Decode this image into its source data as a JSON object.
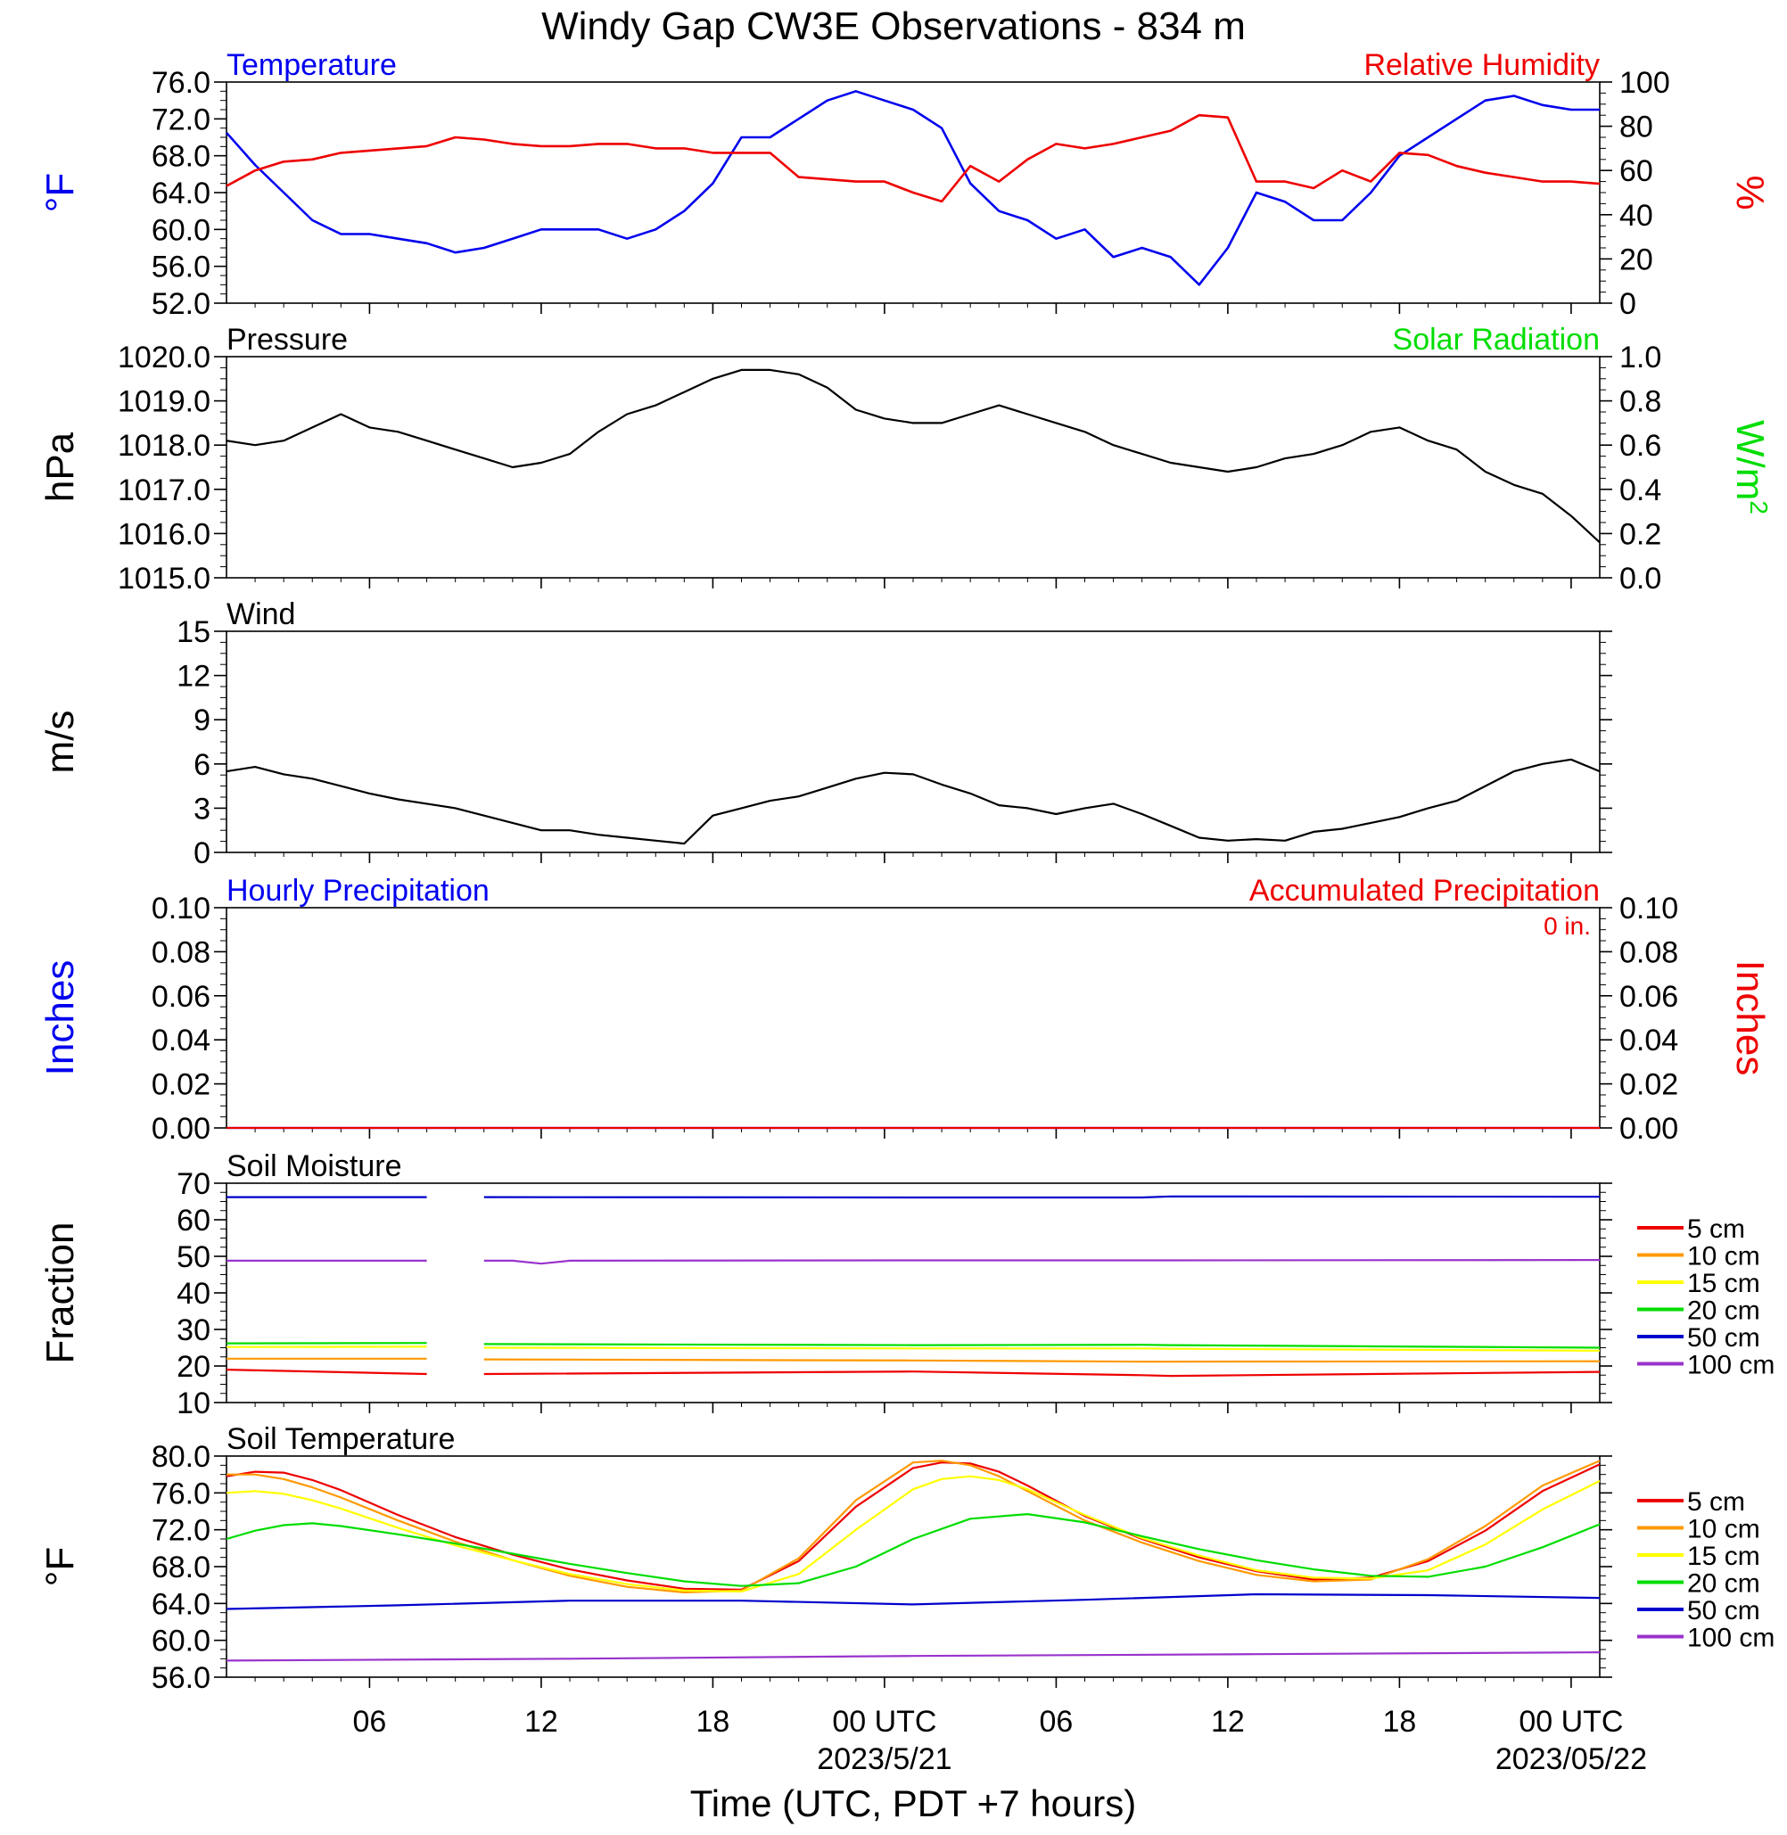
{
  "title": "Windy Gap CW3E Observations - 834 m",
  "xlabel": "Time (UTC, PDT +7 hours)",
  "colors": {
    "blue": "#0000ee",
    "red": "#ee0000",
    "green": "#00dd00",
    "black": "#000000",
    "orange": "#ff9900",
    "yellow": "#ffff00",
    "darkblue": "#0000cc",
    "purple": "#9933cc"
  },
  "time_axis": {
    "range_hours": [
      0,
      48
    ],
    "ticks": [
      {
        "hour": 5,
        "label": "06",
        "date": ""
      },
      {
        "hour": 11,
        "label": "12",
        "date": ""
      },
      {
        "hour": 17,
        "label": "18",
        "date": ""
      },
      {
        "hour": 23,
        "label": "00 UTC",
        "date": "2023/5/21"
      },
      {
        "hour": 29,
        "label": "06",
        "date": ""
      },
      {
        "hour": 35,
        "label": "12",
        "date": ""
      },
      {
        "hour": 41,
        "label": "18",
        "date": ""
      },
      {
        "hour": 47,
        "label": "00 UTC",
        "date": "2023/05/22"
      }
    ]
  },
  "chart_data": [
    {
      "type": "line",
      "title_left": "Temperature",
      "title_right": "Relative Humidity",
      "ylabel_left": "°F",
      "ylabel_right": "%",
      "ylim_left": [
        52,
        76
      ],
      "yticks_left": [
        "52.0",
        "56.0",
        "60.0",
        "64.0",
        "68.0",
        "72.0",
        "76.0"
      ],
      "ylim_right": [
        0,
        100
      ],
      "yticks_right": [
        "0",
        "20",
        "40",
        "60",
        "80",
        "100"
      ],
      "series": [
        {
          "name": "Temperature",
          "axis": "left",
          "color": "blue",
          "x": [
            0,
            1,
            2,
            3,
            4,
            5,
            6,
            7,
            8,
            9,
            10,
            11,
            12,
            13,
            14,
            15,
            16,
            17,
            18,
            19,
            20,
            21,
            22,
            23,
            24,
            25,
            26,
            27,
            28,
            29,
            30,
            31,
            32,
            33,
            34,
            35,
            36,
            37,
            38,
            39,
            40,
            41,
            42,
            43,
            44,
            45,
            46,
            47,
            48
          ],
          "y": [
            70.5,
            67,
            64,
            61,
            59.5,
            59.5,
            59,
            58.5,
            57.5,
            58,
            59,
            60,
            60,
            60,
            59,
            60,
            62,
            65,
            70,
            70,
            72,
            74,
            75,
            74,
            73,
            71,
            65,
            62,
            61,
            59,
            60,
            57,
            58,
            57,
            54,
            58,
            64,
            63,
            61,
            61,
            64,
            68,
            70,
            72,
            74,
            74.5,
            73.5,
            73,
            73
          ]
        },
        {
          "name": "Relative Humidity",
          "axis": "right",
          "color": "red",
          "x": [
            0,
            1,
            2,
            3,
            4,
            5,
            6,
            7,
            8,
            9,
            10,
            11,
            12,
            13,
            14,
            15,
            16,
            17,
            18,
            19,
            20,
            21,
            22,
            23,
            24,
            25,
            26,
            27,
            28,
            29,
            30,
            31,
            32,
            33,
            34,
            35,
            36,
            37,
            38,
            39,
            40,
            41,
            42,
            43,
            44,
            45,
            46,
            47,
            48
          ],
          "y": [
            53,
            60,
            64,
            65,
            68,
            69,
            70,
            71,
            75,
            74,
            72,
            71,
            71,
            72,
            72,
            70,
            70,
            68,
            68,
            68,
            57,
            56,
            55,
            55,
            50,
            46,
            62,
            55,
            65,
            72,
            70,
            72,
            75,
            78,
            85,
            84,
            55,
            55,
            52,
            60,
            55,
            68,
            67,
            62,
            59,
            57,
            55,
            55,
            54
          ]
        }
      ]
    },
    {
      "type": "line",
      "title_left": "Pressure",
      "title_right": "Solar Radiation",
      "ylabel_left": "hPa",
      "ylabel_right": "W/m",
      "ylabel_right_sup": "2",
      "ylim_left": [
        1015,
        1020
      ],
      "yticks_left": [
        "1015.0",
        "1016.0",
        "1017.0",
        "1018.0",
        "1019.0",
        "1020.0"
      ],
      "ylim_right": [
        0,
        1
      ],
      "yticks_right": [
        "0.0",
        "0.2",
        "0.4",
        "0.6",
        "0.8",
        "1.0"
      ],
      "series": [
        {
          "name": "Pressure",
          "axis": "left",
          "color": "black",
          "x": [
            0,
            1,
            2,
            3,
            4,
            5,
            6,
            7,
            8,
            9,
            10,
            11,
            12,
            13,
            14,
            15,
            16,
            17,
            18,
            19,
            20,
            21,
            22,
            23,
            24,
            25,
            26,
            27,
            28,
            29,
            30,
            31,
            32,
            33,
            34,
            35,
            36,
            37,
            38,
            39,
            40,
            41,
            42,
            43,
            44,
            45,
            46,
            47,
            48
          ],
          "y": [
            1018.1,
            1018.0,
            1018.1,
            1018.4,
            1018.7,
            1018.4,
            1018.3,
            1018.1,
            1017.9,
            1017.7,
            1017.5,
            1017.6,
            1017.8,
            1018.3,
            1018.7,
            1018.9,
            1019.2,
            1019.5,
            1019.7,
            1019.7,
            1019.6,
            1019.3,
            1018.8,
            1018.6,
            1018.5,
            1018.5,
            1018.7,
            1018.9,
            1018.7,
            1018.5,
            1018.3,
            1018.0,
            1017.8,
            1017.6,
            1017.5,
            1017.4,
            1017.5,
            1017.7,
            1017.8,
            1018.0,
            1018.3,
            1018.4,
            1018.1,
            1017.9,
            1017.4,
            1017.1,
            1016.9,
            1016.4,
            1015.8
          ]
        }
      ]
    },
    {
      "type": "line",
      "title_left": "Wind",
      "ylabel_left": "m/s",
      "ylim_left": [
        0,
        15
      ],
      "yticks_left": [
        "0",
        "3",
        "6",
        "9",
        "12",
        "15"
      ],
      "series": [
        {
          "name": "Wind",
          "axis": "left",
          "color": "black",
          "x": [
            0,
            1,
            2,
            3,
            4,
            5,
            6,
            7,
            8,
            9,
            10,
            11,
            12,
            13,
            14,
            15,
            16,
            17,
            18,
            19,
            20,
            21,
            22,
            23,
            24,
            25,
            26,
            27,
            28,
            29,
            30,
            31,
            32,
            33,
            34,
            35,
            36,
            37,
            38,
            39,
            40,
            41,
            42,
            43,
            44,
            45,
            46,
            47,
            48
          ],
          "y": [
            5.5,
            5.8,
            5.3,
            5.0,
            4.5,
            4.0,
            3.6,
            3.3,
            3.0,
            2.5,
            2.0,
            1.5,
            1.5,
            1.2,
            1.0,
            0.8,
            0.6,
            2.5,
            3.0,
            3.5,
            3.8,
            4.4,
            5.0,
            5.4,
            5.3,
            4.6,
            4.0,
            3.2,
            3.0,
            2.6,
            3.0,
            3.3,
            2.6,
            1.8,
            1.0,
            0.8,
            0.9,
            0.8,
            1.4,
            1.6,
            2.0,
            2.4,
            3.0,
            3.5,
            4.5,
            5.5,
            6.0,
            6.3,
            5.5
          ]
        }
      ]
    },
    {
      "type": "line",
      "title_left": "Hourly Precipitation",
      "title_right": "Accumulated Precipitation",
      "annotation": "0 in.",
      "ylabel_left": "Inches",
      "ylabel_right": "Inches",
      "ylim_left": [
        0,
        0.1
      ],
      "yticks_left": [
        "0.00",
        "0.02",
        "0.04",
        "0.06",
        "0.08",
        "0.10"
      ],
      "ylim_right": [
        0,
        0.1
      ],
      "yticks_right": [
        "0.00",
        "0.02",
        "0.04",
        "0.06",
        "0.08",
        "0.10"
      ],
      "series": [
        {
          "name": "Hourly Precipitation",
          "axis": "left",
          "color": "blue",
          "x": [
            0,
            48
          ],
          "y": [
            0,
            0
          ]
        },
        {
          "name": "Accumulated Precipitation",
          "axis": "right",
          "color": "red",
          "x": [
            0,
            48
          ],
          "y": [
            0,
            0
          ]
        }
      ]
    },
    {
      "type": "line",
      "title_left": "Soil Moisture",
      "ylabel_left": "Fraction",
      "ylim_left": [
        10,
        70
      ],
      "yticks_left": [
        "10",
        "20",
        "30",
        "40",
        "50",
        "60",
        "70"
      ],
      "legend": [
        "5 cm",
        "10 cm",
        "15 cm",
        "20 cm",
        "50 cm",
        "100 cm"
      ],
      "series": [
        {
          "name": "5 cm",
          "color": "red",
          "x": [
            0,
            7,
            8,
            9,
            24,
            32,
            33,
            48
          ],
          "y": [
            19,
            17.8,
            null,
            17.8,
            18.5,
            17.5,
            17.3,
            18.4
          ]
        },
        {
          "name": "10 cm",
          "color": "orange",
          "x": [
            0,
            7,
            8,
            9,
            24,
            32,
            33,
            48
          ],
          "y": [
            22,
            22,
            null,
            21.8,
            21.5,
            21.2,
            21.2,
            21.3
          ]
        },
        {
          "name": "15 cm",
          "color": "yellow",
          "x": [
            0,
            7,
            8,
            9,
            24,
            32,
            33,
            48
          ],
          "y": [
            25.2,
            25.3,
            null,
            25.0,
            24.8,
            24.8,
            24.7,
            24.2
          ]
        },
        {
          "name": "20 cm",
          "color": "green",
          "x": [
            0,
            7,
            8,
            9,
            24,
            32,
            33,
            48
          ],
          "y": [
            26.2,
            26.3,
            null,
            26.0,
            25.7,
            25.8,
            25.7,
            25.0
          ]
        },
        {
          "name": "50 cm",
          "color": "darkblue",
          "x": [
            0,
            7,
            8,
            9,
            24,
            32,
            33,
            48
          ],
          "y": [
            66.2,
            66.2,
            null,
            66.2,
            66.1,
            66.1,
            66.4,
            66.3
          ]
        },
        {
          "name": "100 cm",
          "color": "purple",
          "x": [
            0,
            7,
            8,
            9,
            10,
            11,
            12,
            24,
            32,
            33,
            48
          ],
          "y": [
            48.8,
            48.8,
            null,
            48.8,
            48.8,
            48.0,
            48.8,
            48.9,
            48.9,
            48.9,
            49.0
          ]
        }
      ]
    },
    {
      "type": "line",
      "title_left": "Soil Temperature",
      "ylabel_left": "°F",
      "ylim_left": [
        56,
        80
      ],
      "yticks_left": [
        "56.0",
        "60.0",
        "64.0",
        "68.0",
        "72.0",
        "76.0",
        "80.0"
      ],
      "legend": [
        "5 cm",
        "10 cm",
        "15 cm",
        "20 cm",
        "50 cm",
        "100 cm"
      ],
      "series": [
        {
          "name": "5 cm",
          "color": "red",
          "x": [
            0,
            1,
            2,
            3,
            4,
            6,
            8,
            10,
            12,
            14,
            16,
            18,
            20,
            22,
            24,
            25,
            26,
            27,
            28,
            30,
            32,
            34,
            36,
            38,
            40,
            42,
            44,
            46,
            48
          ],
          "y": [
            77.8,
            78.3,
            78.2,
            77.4,
            76.3,
            73.6,
            71.2,
            69.3,
            67.7,
            66.5,
            65.6,
            65.5,
            68.6,
            74.5,
            78.7,
            79.3,
            79.2,
            78.3,
            76.8,
            73.5,
            71.0,
            69.0,
            67.5,
            66.6,
            66.8,
            68.6,
            71.9,
            76.2,
            79.1
          ]
        },
        {
          "name": "10 cm",
          "color": "orange",
          "x": [
            0,
            1,
            2,
            3,
            4,
            6,
            8,
            10,
            12,
            14,
            16,
            18,
            20,
            22,
            24,
            25,
            26,
            27,
            28,
            30,
            32,
            34,
            36,
            38,
            40,
            42,
            44,
            46,
            48
          ],
          "y": [
            78.0,
            78.0,
            77.5,
            76.6,
            75.5,
            73.0,
            70.7,
            68.7,
            67.0,
            65.8,
            65.2,
            65.4,
            68.9,
            75.2,
            79.3,
            79.5,
            79.0,
            77.8,
            76.2,
            73.0,
            70.6,
            68.6,
            67.1,
            66.4,
            66.6,
            68.8,
            72.4,
            76.8,
            79.5
          ]
        },
        {
          "name": "15 cm",
          "color": "yellow",
          "x": [
            0,
            1,
            2,
            3,
            4,
            6,
            8,
            10,
            12,
            14,
            16,
            18,
            20,
            22,
            24,
            25,
            26,
            27,
            28,
            30,
            32,
            34,
            36,
            38,
            40,
            42,
            44,
            46,
            48
          ],
          "y": [
            76.0,
            76.2,
            75.9,
            75.2,
            74.3,
            72.2,
            70.3,
            68.7,
            67.2,
            66.1,
            65.4,
            65.3,
            67.2,
            72.0,
            76.4,
            77.5,
            77.8,
            77.4,
            76.4,
            73.6,
            71.1,
            69.2,
            67.6,
            66.8,
            66.7,
            67.6,
            70.4,
            74.2,
            77.3
          ]
        },
        {
          "name": "20 cm",
          "color": "green",
          "x": [
            0,
            1,
            2,
            3,
            4,
            6,
            8,
            10,
            12,
            14,
            16,
            18,
            20,
            22,
            24,
            26,
            28,
            30,
            32,
            34,
            36,
            38,
            40,
            42,
            44,
            46,
            48
          ],
          "y": [
            71.0,
            71.9,
            72.5,
            72.7,
            72.4,
            71.5,
            70.5,
            69.4,
            68.3,
            67.3,
            66.4,
            65.9,
            66.2,
            68.0,
            71.0,
            73.2,
            73.7,
            72.8,
            71.3,
            69.9,
            68.7,
            67.7,
            67.0,
            66.9,
            68.0,
            70.1,
            72.6
          ]
        },
        {
          "name": "50 cm",
          "color": "darkblue",
          "x": [
            0,
            6,
            12,
            18,
            24,
            30,
            36,
            42,
            48
          ],
          "y": [
            63.4,
            63.8,
            64.3,
            64.3,
            63.9,
            64.4,
            65.0,
            64.9,
            64.6
          ]
        },
        {
          "name": "100 cm",
          "color": "purple",
          "x": [
            0,
            12,
            24,
            36,
            48
          ],
          "y": [
            57.8,
            58.0,
            58.3,
            58.5,
            58.7
          ]
        }
      ]
    }
  ]
}
